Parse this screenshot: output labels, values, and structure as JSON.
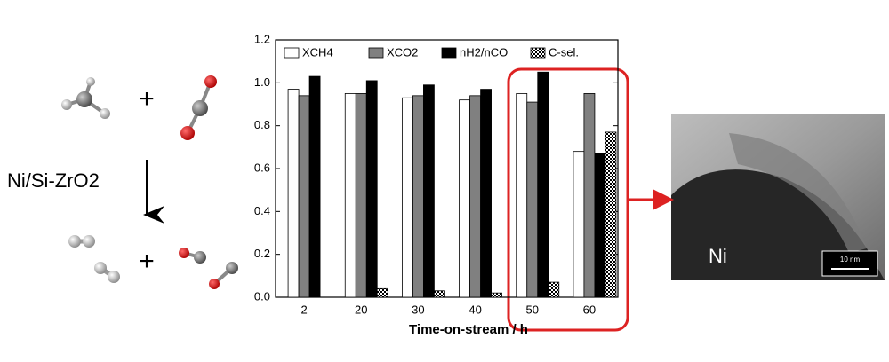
{
  "chart_data": {
    "type": "bar",
    "categories": [
      "2",
      "20",
      "30",
      "40",
      "50",
      "60"
    ],
    "series": [
      {
        "name": "XCH4",
        "color": "#ffffff",
        "values": [
          0.97,
          0.95,
          0.93,
          0.92,
          0.95,
          0.68
        ]
      },
      {
        "name": "XCO2",
        "color": "#808080",
        "values": [
          0.94,
          0.95,
          0.94,
          0.94,
          0.91,
          0.95
        ]
      },
      {
        "name": "nH2/nCO",
        "color": "#000000",
        "values": [
          1.03,
          1.01,
          0.99,
          0.97,
          1.05,
          0.67
        ]
      },
      {
        "name": "C-sel.",
        "color": "hatch",
        "values": [
          null,
          0.04,
          0.03,
          0.02,
          0.07,
          0.77
        ]
      }
    ],
    "xlabel": "Time-on-stream / h",
    "ylim": [
      0,
      1.2
    ],
    "yticks": [
      {
        "value": 0,
        "label": "0.0"
      },
      0.2,
      0.4,
      0.6,
      0.8,
      {
        "value": 1,
        "label": "1.0"
      },
      1.2
    ],
    "legend": "top"
  },
  "scheme": {
    "operators": [
      "+",
      "+"
    ],
    "catalyst": "Ni/Si-ZrO2"
  },
  "image": {
    "label": "Ni",
    "scale_bar": "10 nm"
  }
}
